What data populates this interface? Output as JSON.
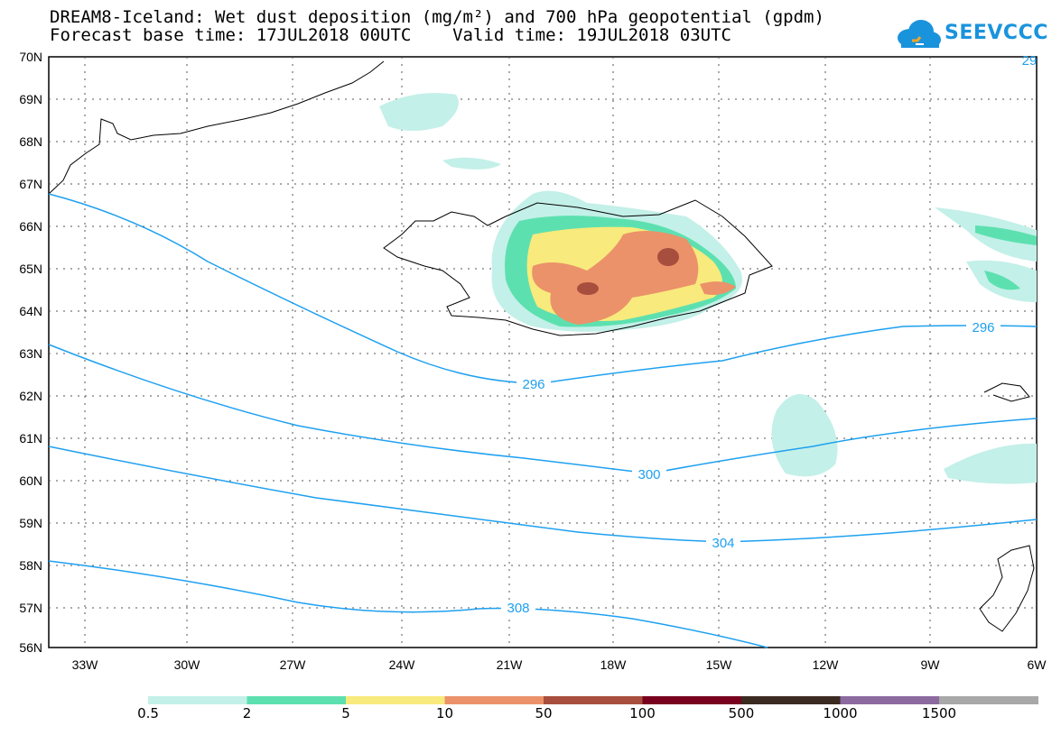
{
  "title": {
    "line1": "DREAM8-Iceland: Wet dust deposition (mg/m²) and 700 hPa geopotential (gpdm)",
    "line2": "Forecast base time: 17JUL2018 00UTC    Valid time: 19JUL2018 03UTC"
  },
  "logo": {
    "text": "SEEVCCC",
    "icon": "cloud-icon",
    "color": "#1a93dd"
  },
  "axes": {
    "lat_ticks": [
      "70N",
      "69N",
      "68N",
      "67N",
      "66N",
      "65N",
      "64N",
      "63N",
      "62N",
      "61N",
      "60N",
      "59N",
      "58N",
      "57N",
      "56N"
    ],
    "lon_ticks": [
      "33W",
      "30W",
      "27W",
      "24W",
      "21W",
      "18W",
      "15W",
      "12W",
      "9W",
      "6W"
    ]
  },
  "contours": {
    "color": "#1ea0f0",
    "labels": [
      "296",
      "296",
      "300",
      "304",
      "308",
      "29"
    ]
  },
  "legend": {
    "colors": [
      "#c3f0e8",
      "#5de0b0",
      "#f8ea7c",
      "#eb926a",
      "#a84e3e",
      "#78001e",
      "#3a2a20",
      "#8c6aa0",
      "#a8a8a8"
    ],
    "labels": [
      "0.5",
      "2",
      "5",
      "10",
      "50",
      "100",
      "500",
      "1000",
      "1500"
    ]
  }
}
